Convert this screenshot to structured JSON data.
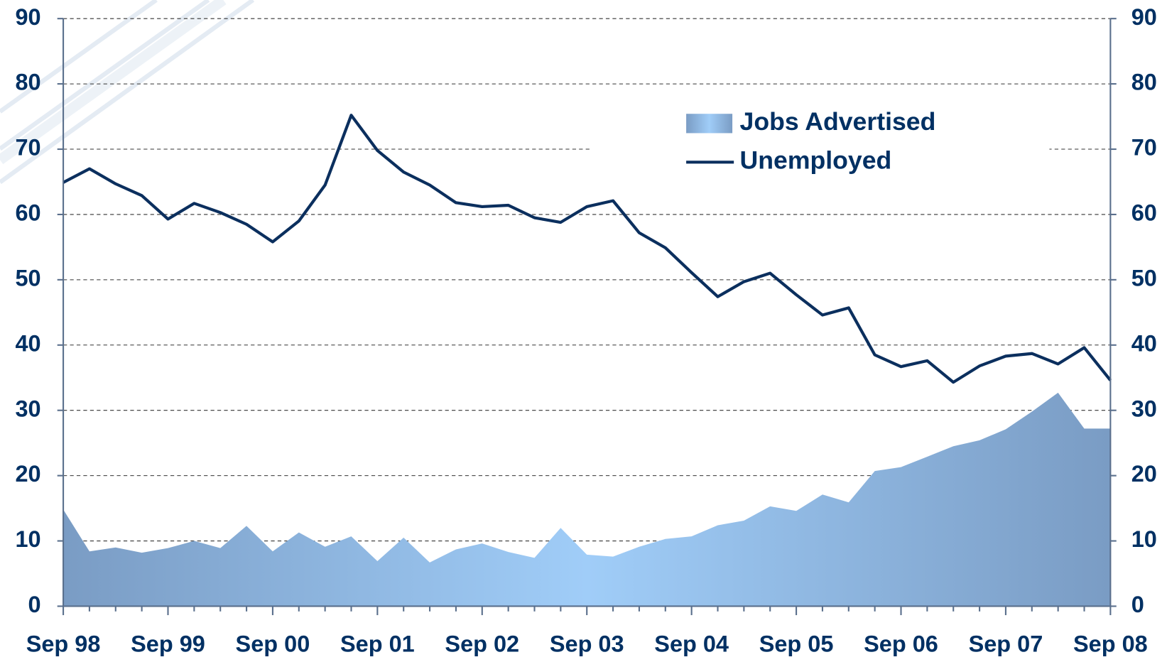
{
  "chart_data": {
    "type": "line",
    "categories": [
      "Sep 98",
      null,
      null,
      null,
      "Sep 99",
      null,
      null,
      null,
      "Sep 00",
      null,
      null,
      null,
      "Sep 01",
      null,
      null,
      null,
      "Sep 02",
      null,
      null,
      null,
      "Sep 03",
      null,
      null,
      null,
      "Sep 04",
      null,
      null,
      null,
      "Sep 05",
      null,
      null,
      null,
      "Sep 06",
      null,
      null,
      null,
      "Sep 07",
      null,
      null,
      null,
      "Sep 08"
    ],
    "series": [
      {
        "name": "Jobs Advertised",
        "style": "area",
        "color": "#7a9cc4",
        "color_mid": "#a0cdf8",
        "values": [
          14.8,
          8.4,
          9,
          8.2,
          8.9,
          10,
          8.9,
          12.3,
          8.4,
          11.3,
          9.1,
          10.7,
          6.9,
          10.5,
          6.7,
          8.7,
          9.6,
          8.3,
          7.4,
          12,
          7.9,
          7.6,
          9.1,
          10.3,
          10.7,
          12.4,
          13.1,
          15.3,
          14.6,
          17.1,
          15.9,
          20.7,
          21.3,
          22.9,
          24.5,
          25.4,
          27.1,
          29.8,
          32.7,
          27.2,
          27.2
        ]
      },
      {
        "name": "Unemployed",
        "style": "line",
        "color": "#0b2f5e",
        "values": [
          64.9,
          67,
          64.7,
          62.9,
          59.3,
          61.7,
          60.3,
          58.5,
          55.8,
          59,
          64.5,
          75.2,
          69.8,
          66.5,
          64.5,
          61.8,
          61.2,
          61.4,
          59.5,
          58.8,
          61.2,
          62.1,
          57.2,
          54.9,
          51.1,
          47.4,
          49.7,
          51,
          47.7,
          44.6,
          45.7,
          38.5,
          36.7,
          37.6,
          34.3,
          36.8,
          38.3,
          38.7,
          37.1,
          39.6,
          34.6
        ]
      }
    ],
    "ylim": [
      0,
      90
    ],
    "yticks": [
      0,
      10,
      20,
      30,
      40,
      50,
      60,
      70,
      80,
      90
    ],
    "y2lim": [
      0,
      90
    ],
    "y2ticks": [
      0,
      10,
      20,
      30,
      40,
      50,
      60,
      70,
      80,
      90
    ],
    "grid": true,
    "legend": "upper right"
  }
}
